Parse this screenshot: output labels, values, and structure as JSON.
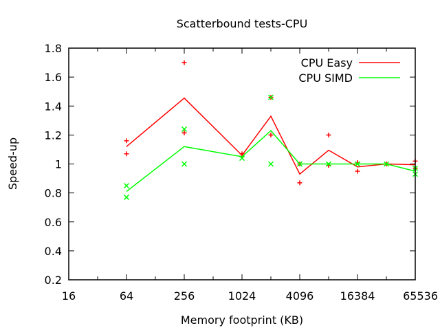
{
  "chart_data": {
    "type": "line",
    "title": "Scatterbound tests-CPU",
    "xlabel": "Memory footprint (KB)",
    "ylabel": "Speed-up",
    "x_scale": "log2",
    "xlim": [
      16,
      65536
    ],
    "ylim": [
      0.2,
      1.8
    ],
    "x_ticks": [
      16,
      64,
      256,
      1024,
      4096,
      16384,
      65536
    ],
    "x_tick_labels": [
      "16",
      "64",
      "256",
      "1024",
      "4096",
      "16384",
      "65536"
    ],
    "x_minor_ticks": [
      32,
      128,
      512,
      2048,
      8192,
      32768
    ],
    "y_ticks": [
      0.2,
      0.4,
      0.6,
      0.8,
      1,
      1.2,
      1.4,
      1.6,
      1.8
    ],
    "y_tick_labels": [
      "0.2",
      "0.4",
      "0.6",
      "0.8",
      "1",
      "1.2",
      "1.4",
      "1.6",
      "1.8"
    ],
    "grid": false,
    "legend_position": "top-right",
    "series": [
      {
        "name": "CPU Easy",
        "color": "#ff0000",
        "marker": "plus",
        "line": [
          [
            64,
            1.12
          ],
          [
            256,
            1.455
          ],
          [
            1024,
            1.06
          ],
          [
            2048,
            1.33
          ],
          [
            4096,
            0.93
          ],
          [
            8192,
            1.095
          ],
          [
            16384,
            0.98
          ],
          [
            32768,
            1.0
          ],
          [
            65536,
            0.995
          ]
        ],
        "points": [
          [
            64,
            1.16
          ],
          [
            64,
            1.07
          ],
          [
            256,
            1.7
          ],
          [
            256,
            1.215
          ],
          [
            1024,
            1.07
          ],
          [
            1024,
            1.05
          ],
          [
            2048,
            1.46
          ],
          [
            2048,
            1.2
          ],
          [
            4096,
            0.87
          ],
          [
            4096,
            1.0
          ],
          [
            8192,
            1.2
          ],
          [
            8192,
            0.99
          ],
          [
            16384,
            1.01
          ],
          [
            16384,
            0.95
          ],
          [
            32768,
            1.0
          ],
          [
            65536,
            1.02
          ],
          [
            65536,
            0.97
          ]
        ]
      },
      {
        "name": "CPU SIMD",
        "color": "#00ff00",
        "marker": "cross",
        "line": [
          [
            64,
            0.81
          ],
          [
            256,
            1.12
          ],
          [
            1024,
            1.05
          ],
          [
            2048,
            1.23
          ],
          [
            4096,
            1.0
          ],
          [
            8192,
            1.0
          ],
          [
            16384,
            1.0
          ],
          [
            32768,
            1.0
          ],
          [
            65536,
            0.95
          ]
        ],
        "points": [
          [
            64,
            0.85
          ],
          [
            64,
            0.77
          ],
          [
            256,
            1.24
          ],
          [
            256,
            1.0
          ],
          [
            1024,
            1.04
          ],
          [
            2048,
            1.46
          ],
          [
            2048,
            1.0
          ],
          [
            4096,
            1.0
          ],
          [
            8192,
            1.0
          ],
          [
            16384,
            1.0
          ],
          [
            32768,
            1.0
          ],
          [
            65536,
            0.97
          ],
          [
            65536,
            0.93
          ]
        ]
      }
    ]
  }
}
